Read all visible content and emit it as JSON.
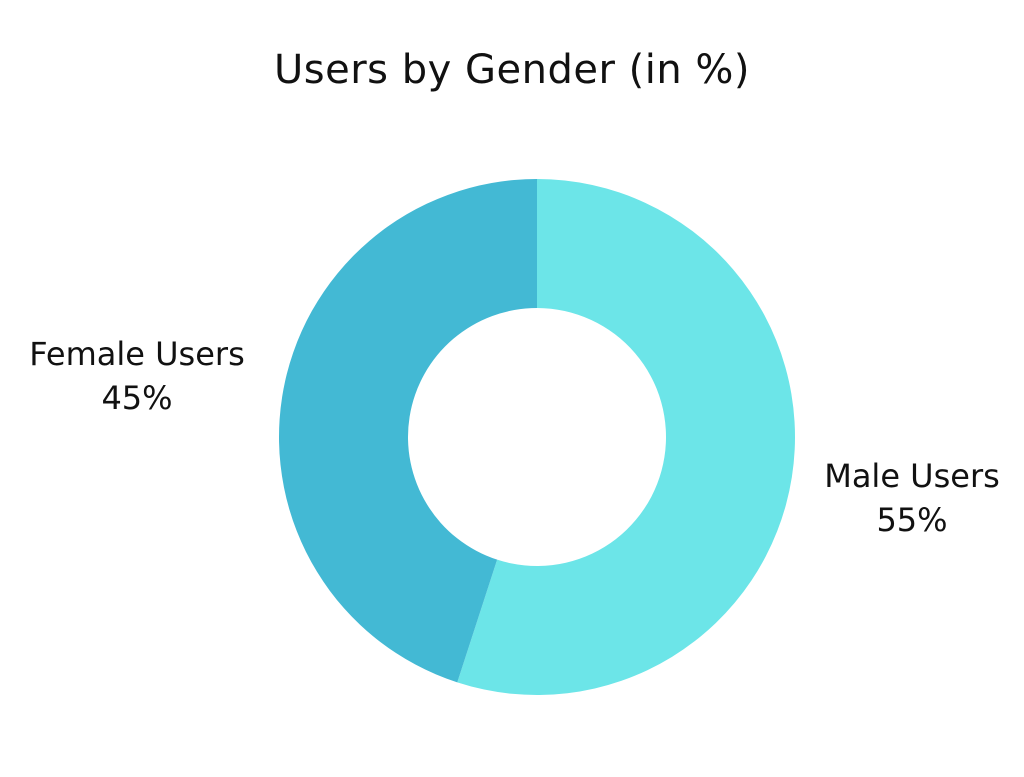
{
  "chart_data": {
    "type": "pie",
    "title": "Users by Gender (in %)",
    "categories": [
      "Male Users",
      "Female Users"
    ],
    "values": [
      55,
      45
    ],
    "value_labels": [
      "55%",
      "45%"
    ],
    "colors": [
      "#6ce5e8",
      "#43b9d4"
    ],
    "start_angle_deg": 0,
    "direction": "clockwise",
    "legend": "none",
    "donut": true
  }
}
